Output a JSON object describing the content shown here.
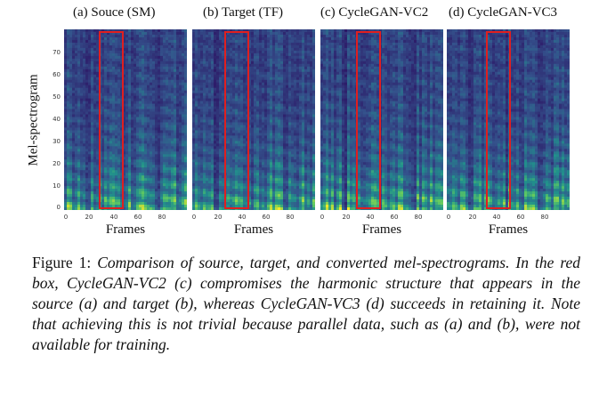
{
  "figure": {
    "panels": [
      {
        "title": "(a) Souce (SM)"
      },
      {
        "title": "(b) Target (TF)"
      },
      {
        "title": "(c) CycleGAN-VC2"
      },
      {
        "title": "(d) CycleGAN-VC3"
      }
    ],
    "y_axis_label": "Mel-spectrogram",
    "x_axis_label": "Frames",
    "y_ticks": [
      "70",
      "60",
      "50",
      "40",
      "30",
      "20",
      "10",
      "0"
    ],
    "x_ticks": [
      "0",
      "20",
      "40",
      "60",
      "80"
    ],
    "colors": {
      "highlight_box": "#e01f1f",
      "spectrogram_low": "#2b1a6b",
      "spectrogram_high": "#f3e72a"
    }
  },
  "caption": {
    "label": "Figure 1: ",
    "text": "Comparison of source, target, and converted mel-spectrograms. In the red box, CycleGAN-VC2 (c) compromises the harmonic structure that appears in the source (a) and target (b), whereas CycleGAN-VC3 (d) succeeds in retaining it. Note that achieving this is not trivial because parallel data, such as (a) and (b), were not available for training."
  }
}
